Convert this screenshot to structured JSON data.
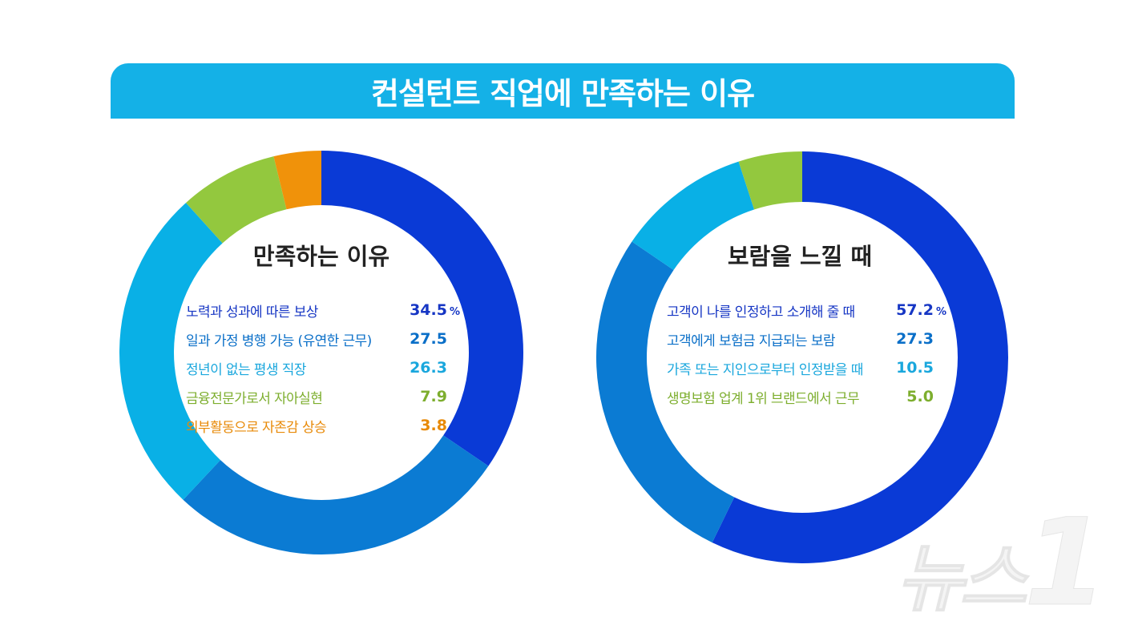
{
  "banner": {
    "title": "컨설턴트 직업에 만족하는 이유",
    "color": "#14b1e7"
  },
  "watermark": {
    "text": "뉴스",
    "number": "1"
  },
  "chart_data": [
    {
      "type": "pie",
      "title": "만족하는 이유",
      "unit": "%",
      "slices": [
        {
          "label": "노력과 성과에 따른 보상",
          "value": 34.5,
          "display": "34.5",
          "color": "#0a3ad6",
          "text_color": "#1636c4"
        },
        {
          "label": "일과 가정 병행 가능 (유연한 근무)",
          "value": 27.5,
          "display": "27.5",
          "color": "#0b7bd3",
          "text_color": "#0a6fc8"
        },
        {
          "label": "정년이 없는 평생 직장",
          "value": 26.3,
          "display": "26.3",
          "color": "#09b0e6",
          "text_color": "#1aa7dd"
        },
        {
          "label": "금융전문가로서 자아실현",
          "value": 7.9,
          "display": "7.9",
          "color": "#93c83e",
          "text_color": "#7dae2e"
        },
        {
          "label": "외부활동으로 자존감 상승",
          "value": 3.8,
          "display": "3.8",
          "color": "#f0920a",
          "text_color": "#e88a08"
        }
      ]
    },
    {
      "type": "pie",
      "title": "보람을 느낄 때",
      "unit": "%",
      "slices": [
        {
          "label": "고객이 나를 인정하고 소개해 줄 때",
          "value": 57.2,
          "display": "57.2",
          "color": "#0a3ad6",
          "text_color": "#1636c4"
        },
        {
          "label": "고객에게 보험금 지급되는 보람",
          "value": 27.3,
          "display": "27.3",
          "color": "#0b7bd3",
          "text_color": "#0a6fc8"
        },
        {
          "label": "가족 또는 지인으로부터 인정받을 때",
          "value": 10.5,
          "display": "10.5",
          "color": "#09b0e6",
          "text_color": "#1aa7dd"
        },
        {
          "label": "생명보험 업계 1위 브랜드에서 근무",
          "value": 5.0,
          "display": "5.0",
          "color": "#93c83e",
          "text_color": "#7dae2e"
        }
      ]
    }
  ]
}
